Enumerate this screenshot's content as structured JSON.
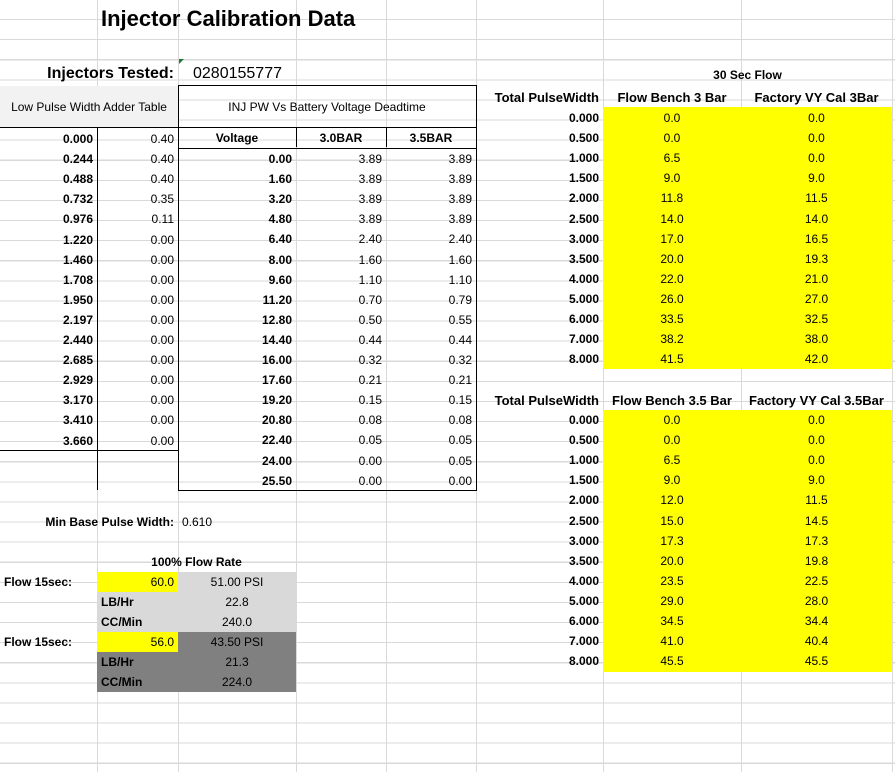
{
  "title": "Injector Calibration Data",
  "injectors_tested": {
    "label": "Injectors Tested:",
    "value": "0280155777"
  },
  "low_pw": {
    "header": "Low Pulse Width Adder Table",
    "rows": [
      [
        "0.000",
        "0.40"
      ],
      [
        "0.244",
        "0.40"
      ],
      [
        "0.488",
        "0.40"
      ],
      [
        "0.732",
        "0.35"
      ],
      [
        "0.976",
        "0.11"
      ],
      [
        "1.220",
        "0.00"
      ],
      [
        "1.460",
        "0.00"
      ],
      [
        "1.708",
        "0.00"
      ],
      [
        "1.950",
        "0.00"
      ],
      [
        "2.197",
        "0.00"
      ],
      [
        "2.440",
        "0.00"
      ],
      [
        "2.685",
        "0.00"
      ],
      [
        "2.929",
        "0.00"
      ],
      [
        "3.170",
        "0.00"
      ],
      [
        "3.410",
        "0.00"
      ],
      [
        "3.660",
        "0.00"
      ]
    ]
  },
  "deadtime": {
    "header": "INJ PW Vs Battery Voltage Deadtime",
    "col_voltage": "Voltage",
    "col_30": "3.0BAR",
    "col_35": "3.5BAR",
    "rows": [
      [
        "0.00",
        "3.89",
        "3.89"
      ],
      [
        "1.60",
        "3.89",
        "3.89"
      ],
      [
        "3.20",
        "3.89",
        "3.89"
      ],
      [
        "4.80",
        "3.89",
        "3.89"
      ],
      [
        "6.40",
        "2.40",
        "2.40"
      ],
      [
        "8.00",
        "1.60",
        "1.60"
      ],
      [
        "9.60",
        "1.10",
        "1.10"
      ],
      [
        "11.20",
        "0.70",
        "0.79"
      ],
      [
        "12.80",
        "0.50",
        "0.55"
      ],
      [
        "14.40",
        "0.44",
        "0.44"
      ],
      [
        "16.00",
        "0.32",
        "0.32"
      ],
      [
        "17.60",
        "0.21",
        "0.21"
      ],
      [
        "19.20",
        "0.15",
        "0.15"
      ],
      [
        "20.80",
        "0.08",
        "0.08"
      ],
      [
        "22.40",
        "0.05",
        "0.05"
      ],
      [
        "24.00",
        "0.00",
        "0.05"
      ],
      [
        "25.50",
        "0.00",
        "0.00"
      ]
    ]
  },
  "min_base": {
    "label": "Min Base Pulse Width:",
    "value": "0.610"
  },
  "flow_rate": {
    "header": "100% Flow Rate",
    "blocks": [
      {
        "flow_label": "Flow 15sec:",
        "flow_value": "60.0",
        "psi": "51.00 PSI",
        "lbhr_label": "LB/Hr",
        "lbhr": "22.8",
        "ccmin_label": "CC/Min",
        "ccmin": "240.0"
      },
      {
        "flow_label": "Flow 15sec:",
        "flow_value": "56.0",
        "psi": "43.50 PSI",
        "lbhr_label": "LB/Hr",
        "lbhr": "21.3",
        "ccmin_label": "CC/Min",
        "ccmin": "224.0"
      }
    ]
  },
  "sec30_label": "30 Sec Flow",
  "flow3": {
    "col_pw": "Total PulseWidth",
    "col_bench": "Flow Bench 3 Bar",
    "col_factory": "Factory VY Cal 3Bar",
    "rows": [
      [
        "0.000",
        "0.0",
        "0.0"
      ],
      [
        "0.500",
        "0.0",
        "0.0"
      ],
      [
        "1.000",
        "6.5",
        "0.0"
      ],
      [
        "1.500",
        "9.0",
        "9.0"
      ],
      [
        "2.000",
        "11.8",
        "11.5"
      ],
      [
        "2.500",
        "14.0",
        "14.0"
      ],
      [
        "3.000",
        "17.0",
        "16.5"
      ],
      [
        "3.500",
        "20.0",
        "19.3"
      ],
      [
        "4.000",
        "22.0",
        "21.0"
      ],
      [
        "5.000",
        "26.0",
        "27.0"
      ],
      [
        "6.000",
        "33.5",
        "32.5"
      ],
      [
        "7.000",
        "38.2",
        "38.0"
      ],
      [
        "8.000",
        "41.5",
        "42.0"
      ]
    ]
  },
  "flow35": {
    "col_pw": "Total PulseWidth",
    "col_bench": "Flow Bench 3.5 Bar",
    "col_factory": "Factory VY Cal 3.5Bar",
    "rows": [
      [
        "0.000",
        "0.0",
        "0.0"
      ],
      [
        "0.500",
        "0.0",
        "0.0"
      ],
      [
        "1.000",
        "6.5",
        "0.0"
      ],
      [
        "1.500",
        "9.0",
        "9.0"
      ],
      [
        "2.000",
        "12.0",
        "11.5"
      ],
      [
        "2.500",
        "15.0",
        "14.5"
      ],
      [
        "3.000",
        "17.3",
        "17.3"
      ],
      [
        "3.500",
        "20.0",
        "19.8"
      ],
      [
        "4.000",
        "23.5",
        "22.5"
      ],
      [
        "5.000",
        "29.0",
        "28.0"
      ],
      [
        "6.000",
        "34.5",
        "34.4"
      ],
      [
        "7.000",
        "41.0",
        "40.4"
      ],
      [
        "8.000",
        "45.5",
        "45.5"
      ]
    ]
  },
  "colors": {
    "yellow": "#ffff00",
    "light_gray": "#d9d9d9",
    "dark_gray": "#808080",
    "grid": "#d9d9d9"
  }
}
